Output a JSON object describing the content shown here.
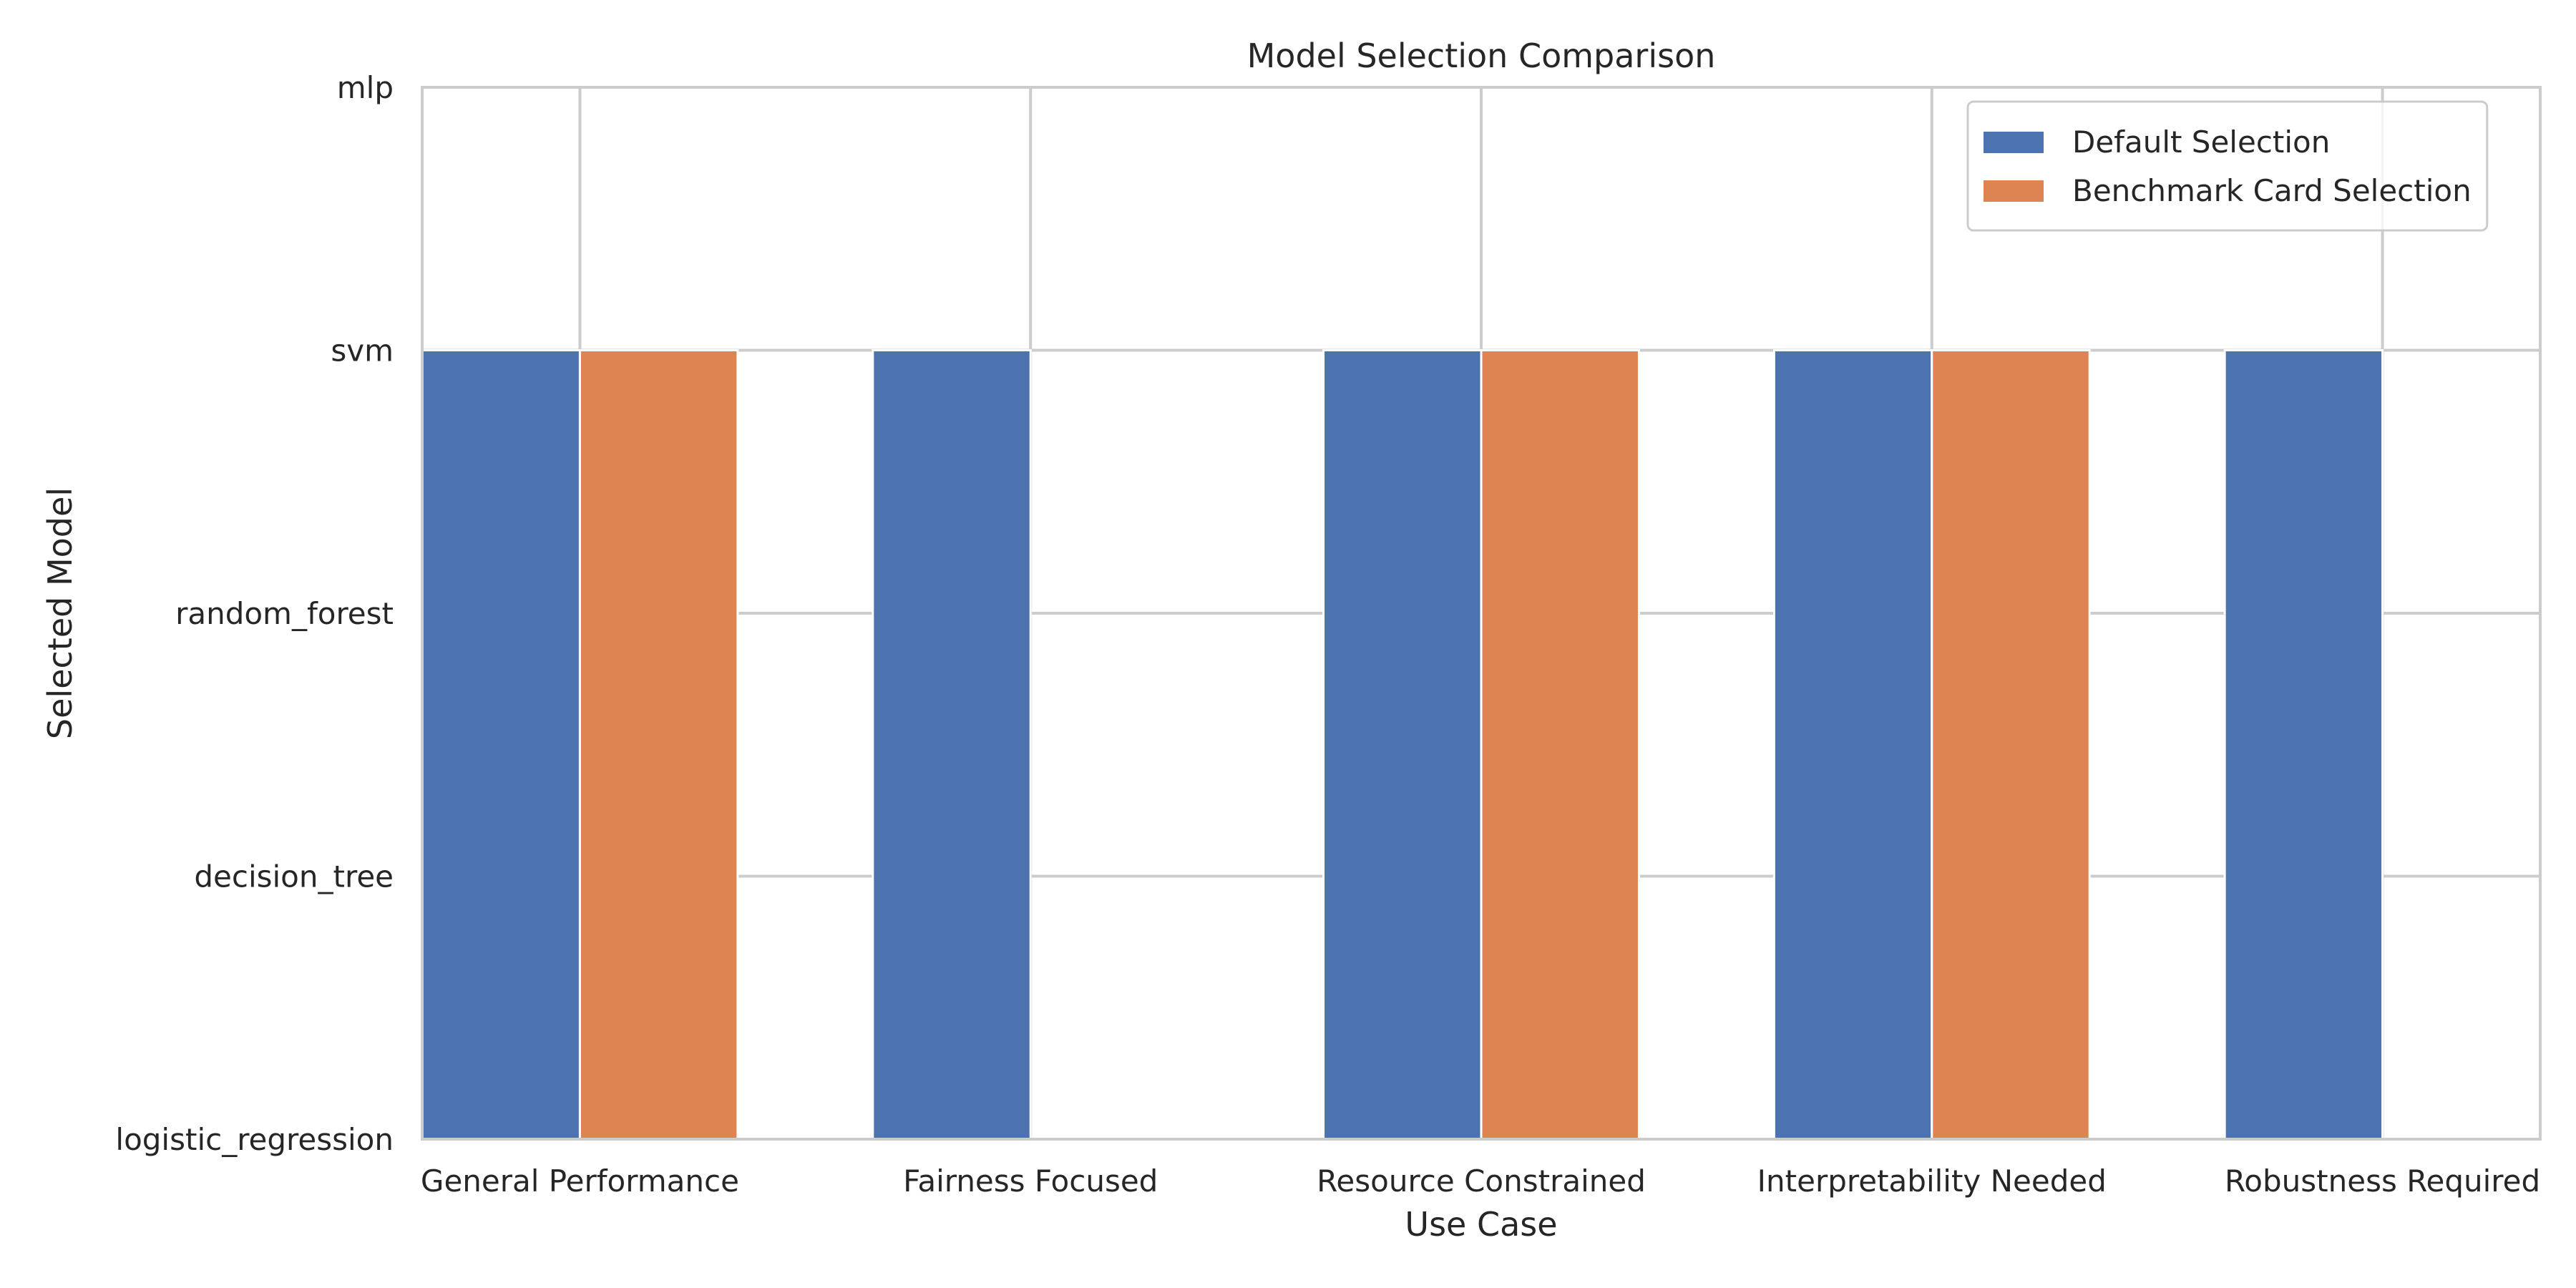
{
  "chart_data": {
    "type": "bar",
    "title": "Model Selection Comparison",
    "xlabel": "Use Case",
    "ylabel": "Selected Model",
    "categories": [
      "General Performance",
      "Fairness Focused",
      "Resource Constrained",
      "Interpretability Needed",
      "Robustness Required"
    ],
    "y_categories": [
      "logistic_regression",
      "decision_tree",
      "random_forest",
      "svm",
      "mlp"
    ],
    "ylim": [
      0,
      4
    ],
    "grid": true,
    "legend_position": "top-right",
    "series": [
      {
        "name": "Default Selection",
        "color": "#4c72b0",
        "values": [
          3,
          3,
          3,
          3,
          3
        ]
      },
      {
        "name": "Benchmark Card Selection",
        "color": "#dd8452",
        "values": [
          3,
          0,
          3,
          3,
          0
        ]
      }
    ]
  }
}
